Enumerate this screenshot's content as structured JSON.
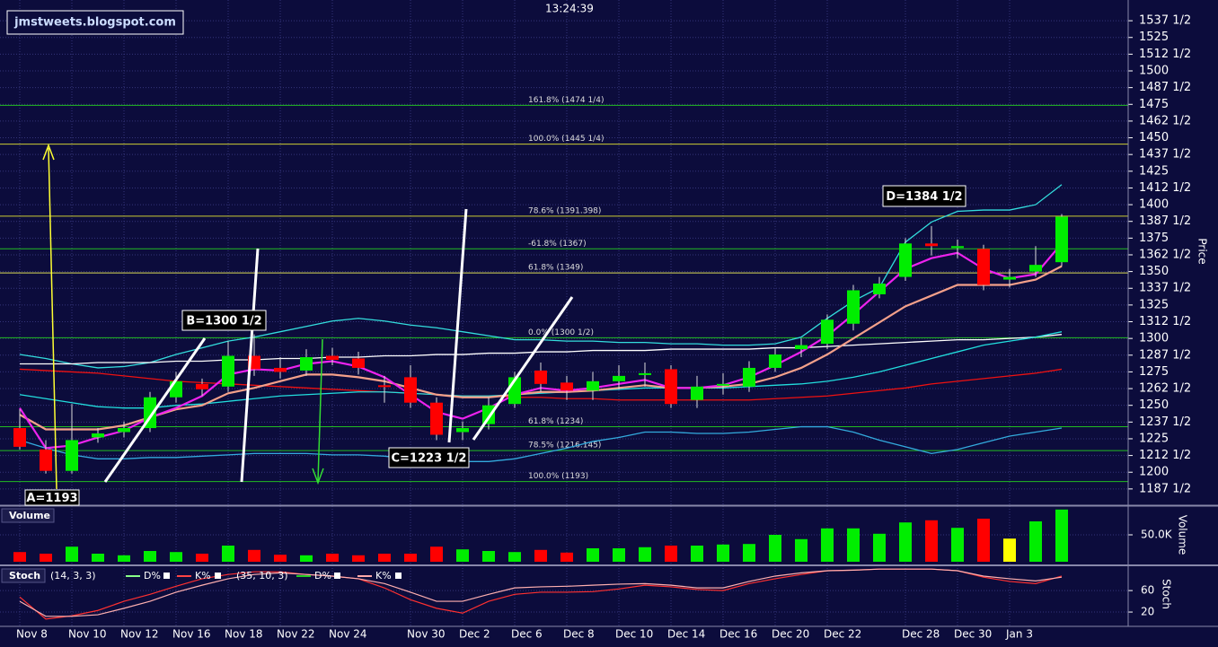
{
  "header": {
    "site": "jmstweets.blogspot.com",
    "time": "13:24:39"
  },
  "chart_data": [
    {
      "type": "candlestick",
      "ylabel": "Price",
      "categories": [
        "Nov 8",
        null,
        "Nov 10",
        null,
        "Nov 12",
        null,
        "Nov 16",
        null,
        "Nov 18",
        null,
        "Nov 22",
        null,
        "Nov 24",
        null,
        null,
        "Nov 30",
        null,
        "Dec 2",
        null,
        "Dec 6",
        null,
        "Dec 8",
        null,
        "Dec 10",
        null,
        "Dec 14",
        null,
        "Dec 16",
        null,
        "Dec 20",
        null,
        "Dec 22",
        null,
        null,
        "Dec 28",
        null,
        "Dec 30",
        null,
        "Jan 3",
        null,
        null
      ],
      "open": [
        1233,
        1217,
        1201,
        1226,
        1230,
        1233,
        1256,
        1266,
        1264,
        1287,
        1278,
        1276,
        1287,
        1285,
        1265,
        1271,
        1252,
        1230,
        1236,
        1251,
        1276,
        1267,
        1261,
        1268,
        1273,
        1277,
        1254,
        1265,
        1264,
        1278,
        1292,
        1296,
        1311,
        1333,
        1346,
        1371,
        1368,
        1367,
        1344,
        1350,
        1357
      ],
      "high": [
        1247,
        1224,
        1251,
        1233,
        1238,
        1260,
        1275,
        1270,
        1298,
        1303,
        1286,
        1292,
        1293,
        1290,
        1272,
        1280,
        1256,
        1238,
        1256,
        1275,
        1282,
        1272,
        1275,
        1280,
        1282,
        1280,
        1272,
        1274,
        1283,
        1293,
        1300,
        1318,
        1340,
        1346,
        1375,
        1384,
        1374,
        1370,
        1352,
        1369,
        1393
      ],
      "low": [
        1217,
        1199,
        1199,
        1222,
        1226,
        1230,
        1252,
        1257,
        1260,
        1272,
        1270,
        1272,
        1280,
        1273,
        1252,
        1248,
        1224,
        1224,
        1232,
        1248,
        1260,
        1254,
        1254,
        1262,
        1264,
        1248,
        1248,
        1258,
        1260,
        1275,
        1286,
        1292,
        1306,
        1330,
        1343,
        1362,
        1360,
        1336,
        1338,
        1346,
        1354
      ],
      "close": [
        1219,
        1201,
        1224,
        1229,
        1233,
        1256,
        1268,
        1262,
        1287,
        1277,
        1275,
        1286,
        1284,
        1278,
        1264,
        1252,
        1228,
        1233,
        1250,
        1271,
        1266,
        1261,
        1268,
        1272,
        1274,
        1251,
        1264,
        1266,
        1278,
        1288,
        1295,
        1314,
        1336,
        1341,
        1371,
        1369,
        1369,
        1340,
        1346,
        1355,
        1391
      ],
      "up_color": "#00ee00",
      "down_color": "#ff0000",
      "overlays": [
        {
          "color": "#33dddd",
          "values": [
            1288,
            1285,
            1281,
            1278,
            1279,
            1282,
            1288,
            1293,
            1298,
            1301,
            1305,
            1309,
            1313,
            1315,
            1313,
            1310,
            1308,
            1305,
            1302,
            1299,
            1299,
            1298,
            1298,
            1297,
            1297,
            1296,
            1296,
            1295,
            1295,
            1296,
            1301,
            1315,
            1328,
            1338,
            1372,
            1387,
            1395,
            1396,
            1396,
            1400,
            1415
          ]
        },
        {
          "color": "#33aadd",
          "values": [
            1224,
            1218,
            1213,
            1210,
            1210,
            1211,
            1211,
            1212,
            1213,
            1214,
            1214,
            1214,
            1213,
            1213,
            1212,
            1210,
            1208,
            1208,
            1208,
            1210,
            1214,
            1218,
            1223,
            1226,
            1230,
            1230,
            1229,
            1229,
            1230,
            1232,
            1234,
            1234,
            1230,
            1224,
            1219,
            1214,
            1217,
            1222,
            1227,
            1230,
            1233
          ]
        },
        {
          "color": "#ee1111",
          "values": [
            1277,
            1276,
            1275,
            1274,
            1272,
            1270,
            1268,
            1267,
            1266,
            1265,
            1264,
            1263,
            1262,
            1261,
            1260,
            1259,
            1258,
            1257,
            1257,
            1256,
            1256,
            1255,
            1255,
            1254,
            1254,
            1254,
            1254,
            1254,
            1254,
            1255,
            1256,
            1257,
            1259,
            1261,
            1263,
            1266,
            1268,
            1270,
            1272,
            1274,
            1277
          ]
        },
        {
          "color": "#ffffff",
          "values": [
            1281,
            1281,
            1281,
            1282,
            1282,
            1282,
            1283,
            1283,
            1284,
            1284,
            1285,
            1285,
            1286,
            1286,
            1287,
            1287,
            1288,
            1288,
            1289,
            1289,
            1290,
            1290,
            1291,
            1291,
            1291,
            1292,
            1292,
            1292,
            1292,
            1293,
            1293,
            1294,
            1295,
            1296,
            1297,
            1298,
            1299,
            1299,
            1300,
            1301,
            1303
          ]
        },
        {
          "color": "#22dddd",
          "values": [
            1258,
            1255,
            1252,
            1249,
            1248,
            1248,
            1250,
            1251,
            1253,
            1255,
            1257,
            1258,
            1259,
            1260,
            1260,
            1259,
            1258,
            1257,
            1257,
            1258,
            1259,
            1260,
            1261,
            1262,
            1263,
            1263,
            1263,
            1263,
            1264,
            1265,
            1266,
            1268,
            1271,
            1275,
            1280,
            1285,
            1290,
            1295,
            1298,
            1301,
            1305
          ]
        },
        {
          "color": "#f4a08a",
          "values": [
            1243,
            1232,
            1232,
            1232,
            1235,
            1241,
            1247,
            1250,
            1259,
            1263,
            1268,
            1273,
            1273,
            1271,
            1268,
            1263,
            1258,
            1256,
            1256,
            1258,
            1260,
            1260,
            1261,
            1263,
            1265,
            1263,
            1263,
            1264,
            1266,
            1271,
            1278,
            1288,
            1300,
            1312,
            1324,
            1332,
            1340,
            1340,
            1340,
            1344,
            1354
          ]
        },
        {
          "color": "#ee22ee",
          "values": [
            1248,
            1218,
            1220,
            1226,
            1231,
            1241,
            1248,
            1257,
            1273,
            1277,
            1276,
            1281,
            1283,
            1279,
            1271,
            1258,
            1245,
            1240,
            1248,
            1258,
            1263,
            1261,
            1263,
            1266,
            1269,
            1263,
            1263,
            1265,
            1271,
            1280,
            1290,
            1302,
            1318,
            1335,
            1352,
            1360,
            1364,
            1352,
            1345,
            1348,
            1371
          ]
        }
      ],
      "levels": [
        {
          "value": 1474.25,
          "label": "161.8% (1474 1/4)",
          "color": "#22bb22"
        },
        {
          "value": 1445.25,
          "label": "100.0% (1445 1/4)",
          "color": "#cccc33"
        },
        {
          "value": 1391.398,
          "label": "78.6% (1391.398)",
          "color": "#cccc33"
        },
        {
          "value": 1367,
          "label": "-61.8% (1367)",
          "color": "#22bb22"
        },
        {
          "value": 1349,
          "label": "61.8% (1349)",
          "color": "#dddd55"
        },
        {
          "value": 1300.5,
          "label": "0.0% (1300 1/2)",
          "color": "#22bb22"
        },
        {
          "value": 1234,
          "label": "61.8% (1234)",
          "color": "#22bb22"
        },
        {
          "value": 1216.145,
          "label": "78.5% (1216.145)",
          "color": "#22bb22"
        },
        {
          "value": 1193,
          "label": "100.0% (1193)",
          "color": "#22bb22"
        }
      ],
      "annotations": [
        "A=1193",
        "B=1300 1/2",
        "C=1223 1/2",
        "D=1384 1/2"
      ],
      "ylim": [
        1176,
        1553
      ],
      "yticks": [
        {
          "value": 1537.5,
          "label": "1537 1/2"
        },
        1525,
        {
          "value": 1512.5,
          "label": "1512 1/2"
        },
        1500,
        {
          "value": 1487.5,
          "label": "1487 1/2"
        },
        1475,
        {
          "value": 1462.5,
          "label": "1462 1/2"
        },
        1450,
        {
          "value": 1437.5,
          "label": "1437 1/2"
        },
        1425,
        {
          "value": 1412.5,
          "label": "1412 1/2"
        },
        1400,
        {
          "value": 1387.5,
          "label": "1387 1/2"
        },
        1375,
        {
          "value": 1362.5,
          "label": "1362 1/2"
        },
        1350,
        {
          "value": 1337.5,
          "label": "1337 1/2"
        },
        1325,
        {
          "value": 1312.5,
          "label": "1312 1/2"
        },
        1300,
        {
          "value": 1287.5,
          "label": "1287 1/2"
        },
        1275,
        {
          "value": 1262.5,
          "label": "1262 1/2"
        },
        1250,
        {
          "value": 1237.5,
          "label": "1237 1/2"
        },
        1225,
        {
          "value": 1212.5,
          "label": "1212 1/2"
        },
        1200,
        {
          "value": 1187.5,
          "label": "1187 1/2"
        }
      ],
      "grid": true
    },
    {
      "type": "bar",
      "title": "Volume",
      "ylabel": "Volume",
      "values": [
        18000,
        15000,
        28000,
        15000,
        12000,
        20000,
        18000,
        15000,
        30000,
        22000,
        13000,
        12000,
        15000,
        12000,
        15000,
        15000,
        28000,
        23000,
        20000,
        18000,
        22000,
        17000,
        25000,
        25000,
        27000,
        30000,
        30000,
        32000,
        33000,
        50000,
        42000,
        62000,
        62000,
        52000,
        73000,
        77000,
        63000,
        80000,
        43000,
        75000,
        97000
      ],
      "colors": [
        "#ff0000",
        "#ff0000",
        "#00ee00",
        "#00ee00",
        "#00ee00",
        "#00ee00",
        "#00ee00",
        "#ff0000",
        "#00ee00",
        "#ff0000",
        "#ff0000",
        "#00ee00",
        "#ff0000",
        "#ff0000",
        "#ff0000",
        "#ff0000",
        "#ff0000",
        "#00ee00",
        "#00ee00",
        "#00ee00",
        "#ff0000",
        "#ff0000",
        "#00ee00",
        "#00ee00",
        "#00ee00",
        "#ff0000",
        "#00ee00",
        "#00ee00",
        "#00ee00",
        "#00ee00",
        "#00ee00",
        "#00ee00",
        "#00ee00",
        "#00ee00",
        "#00ee00",
        "#ff0000",
        "#00ee00",
        "#ff0000",
        "#ffff00",
        "#00ee00",
        "#00ee00"
      ],
      "ylim": [
        0,
        100000
      ],
      "yticks": [
        {
          "value": 50000,
          "label": "50.0K"
        }
      ],
      "grid": true
    },
    {
      "type": "line",
      "title": "Stoch",
      "ylabel": "Stoch",
      "legend": [
        {
          "params": "(14, 3, 3)",
          "items": [
            {
              "name": "D%",
              "color": "#88ff88"
            },
            {
              "name": "K%",
              "color": "#ff4444"
            }
          ]
        },
        {
          "params": "(35, 10, 3)",
          "items": [
            {
              "name": "D%",
              "color": "#22cc22"
            },
            {
              "name": "K%",
              "color": "#ffaaaa"
            }
          ]
        }
      ],
      "series": [
        {
          "color": "#ff3030",
          "values": [
            48,
            7,
            13,
            23,
            40,
            53,
            68,
            82,
            90,
            95,
            95,
            90,
            87,
            82,
            65,
            43,
            27,
            18,
            40,
            53,
            57,
            57,
            58,
            63,
            70,
            67,
            62,
            60,
            73,
            82,
            90,
            97,
            98,
            100,
            100,
            100,
            97,
            85,
            77,
            73,
            87
          ]
        },
        {
          "color": "#ffb0b0",
          "values": [
            40,
            12,
            12,
            15,
            27,
            40,
            57,
            70,
            82,
            90,
            93,
            90,
            87,
            82,
            73,
            57,
            40,
            40,
            53,
            65,
            67,
            68,
            70,
            72,
            73,
            70,
            65,
            65,
            77,
            87,
            93,
            97,
            98,
            100,
            100,
            100,
            97,
            87,
            82,
            78,
            85
          ]
        }
      ],
      "ylim": [
        -5,
        102
      ],
      "yticks": [
        20,
        60
      ],
      "grid": true
    }
  ]
}
